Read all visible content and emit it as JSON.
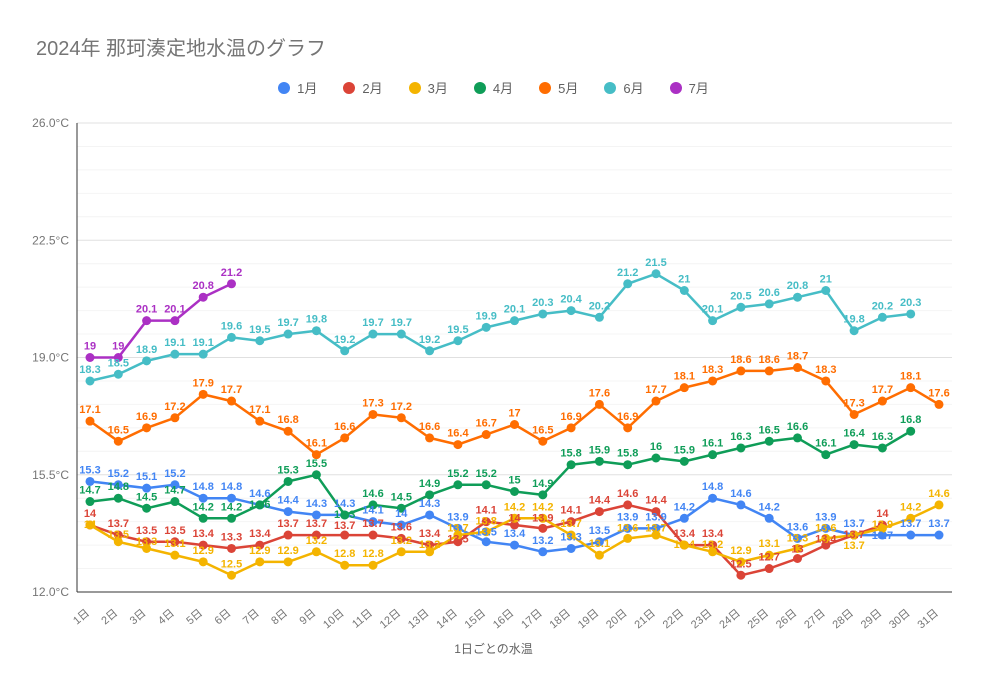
{
  "title": "2024年 那珂湊定地水温のグラフ",
  "axes": {
    "x_axis_title": "1日ごとの水温",
    "y_ticks": [
      {
        "value": 12.0,
        "label": "12.0°C"
      },
      {
        "value": 15.5,
        "label": "15.5°C"
      },
      {
        "value": 19.0,
        "label": "19.0°C"
      },
      {
        "value": 22.5,
        "label": "22.5°C"
      },
      {
        "value": 26.0,
        "label": "26.0°C"
      }
    ],
    "x_labels": [
      "1日",
      "2日",
      "3日",
      "4日",
      "5日",
      "6日",
      "7日",
      "8日",
      "9日",
      "10日",
      "11日",
      "12日",
      "13日",
      "14日",
      "15日",
      "16日",
      "17日",
      "18日",
      "19日",
      "20日",
      "21日",
      "22日",
      "23日",
      "24日",
      "25日",
      "26日",
      "27日",
      "28日",
      "29日",
      "30日",
      "31日"
    ]
  },
  "legend": {
    "items": [
      {
        "label": "1月",
        "color": "#4285F4"
      },
      {
        "label": "2月",
        "color": "#DB4437"
      },
      {
        "label": "3月",
        "color": "#F4B400"
      },
      {
        "label": "4月",
        "color": "#0F9D58"
      },
      {
        "label": "5月",
        "color": "#FF6D01"
      },
      {
        "label": "6月",
        "color": "#46BDC6"
      },
      {
        "label": "7月",
        "color": "#AB30C4"
      }
    ]
  },
  "chart_data": {
    "type": "line",
    "title": "2024年 那珂湊定地水温のグラフ",
    "xlabel": "1日ごとの水温",
    "ylabel": "",
    "ylim": [
      12.0,
      26.0
    ],
    "y_major_step": 3.5,
    "y_minor_step": 0.7,
    "grid": true,
    "legend_position": "top",
    "categories": [
      1,
      2,
      3,
      4,
      5,
      6,
      7,
      8,
      9,
      10,
      11,
      12,
      13,
      14,
      15,
      16,
      17,
      18,
      19,
      20,
      21,
      22,
      23,
      24,
      25,
      26,
      27,
      28,
      29,
      30,
      31
    ],
    "series": [
      {
        "name": "1月",
        "color": "#4285F4",
        "values": [
          15.3,
          15.2,
          15.1,
          15.2,
          14.8,
          14.8,
          14.6,
          14.4,
          14.3,
          14.3,
          14.1,
          14,
          14.3,
          13.9,
          13.5,
          13.4,
          13.2,
          13.3,
          13.5,
          13.9,
          13.9,
          14.2,
          14.8,
          14.6,
          14.2,
          13.6,
          13.9,
          13.7,
          13.7,
          13.7,
          13.7
        ]
      },
      {
        "name": "2月",
        "color": "#DB4437",
        "values": [
          14,
          13.7,
          13.5,
          13.5,
          13.4,
          13.3,
          13.4,
          13.7,
          13.7,
          13.7,
          13.7,
          13.6,
          13.4,
          13.5,
          14.1,
          14,
          13.9,
          14.1,
          14.4,
          14.6,
          14.4,
          13.4,
          13.4,
          12.5,
          12.7,
          13,
          13.4,
          13.7,
          14,
          null,
          null
        ]
      },
      {
        "name": "3月",
        "color": "#F4B400",
        "values": [
          14,
          13.5,
          13.3,
          13.1,
          12.9,
          12.5,
          12.9,
          12.9,
          13.2,
          12.8,
          12.8,
          13.2,
          13.2,
          13.7,
          13.8,
          14.2,
          14.2,
          13.7,
          13.1,
          13.6,
          13.7,
          13.4,
          13.2,
          12.9,
          13.1,
          13.3,
          13.6,
          13.7,
          13.9,
          14.2,
          14.6
        ]
      },
      {
        "name": "4月",
        "color": "#0F9D58",
        "values": [
          14.7,
          14.8,
          14.5,
          14.7,
          14.2,
          14.2,
          14.6,
          15.3,
          15.5,
          14.3,
          14.6,
          14.5,
          14.9,
          15.2,
          15.2,
          15,
          14.9,
          15.8,
          15.9,
          15.8,
          16,
          15.9,
          16.1,
          16.3,
          16.5,
          16.6,
          16.1,
          16.4,
          16.3,
          16.8,
          null
        ]
      },
      {
        "name": "5月",
        "color": "#FF6D01",
        "values": [
          17.1,
          16.5,
          16.9,
          17.2,
          17.9,
          17.7,
          17.1,
          16.8,
          16.1,
          16.6,
          17.3,
          17.2,
          16.6,
          16.4,
          16.7,
          17,
          16.5,
          16.9,
          17.6,
          16.9,
          17.7,
          18.1,
          18.3,
          18.6,
          18.6,
          18.7,
          18.3,
          17.3,
          17.7,
          18.1,
          17.6
        ]
      },
      {
        "name": "6月",
        "color": "#46BDC6",
        "values": [
          18.3,
          18.5,
          18.9,
          19.1,
          19.1,
          19.6,
          19.5,
          19.7,
          19.8,
          19.2,
          19.7,
          19.7,
          19.2,
          19.5,
          19.9,
          20.1,
          20.3,
          20.4,
          20.2,
          21.2,
          21.5,
          21,
          20.1,
          20.5,
          20.6,
          20.8,
          21,
          19.8,
          20.2,
          20.3,
          null
        ]
      },
      {
        "name": "7月",
        "color": "#AB30C4",
        "values": [
          19,
          19,
          20.1,
          20.1,
          20.8,
          21.2,
          null,
          null,
          null,
          null,
          null,
          null,
          null,
          null,
          null,
          null,
          null,
          null,
          null,
          null,
          null,
          null,
          null,
          null,
          null,
          null,
          null,
          null,
          null,
          null,
          null
        ]
      }
    ]
  }
}
